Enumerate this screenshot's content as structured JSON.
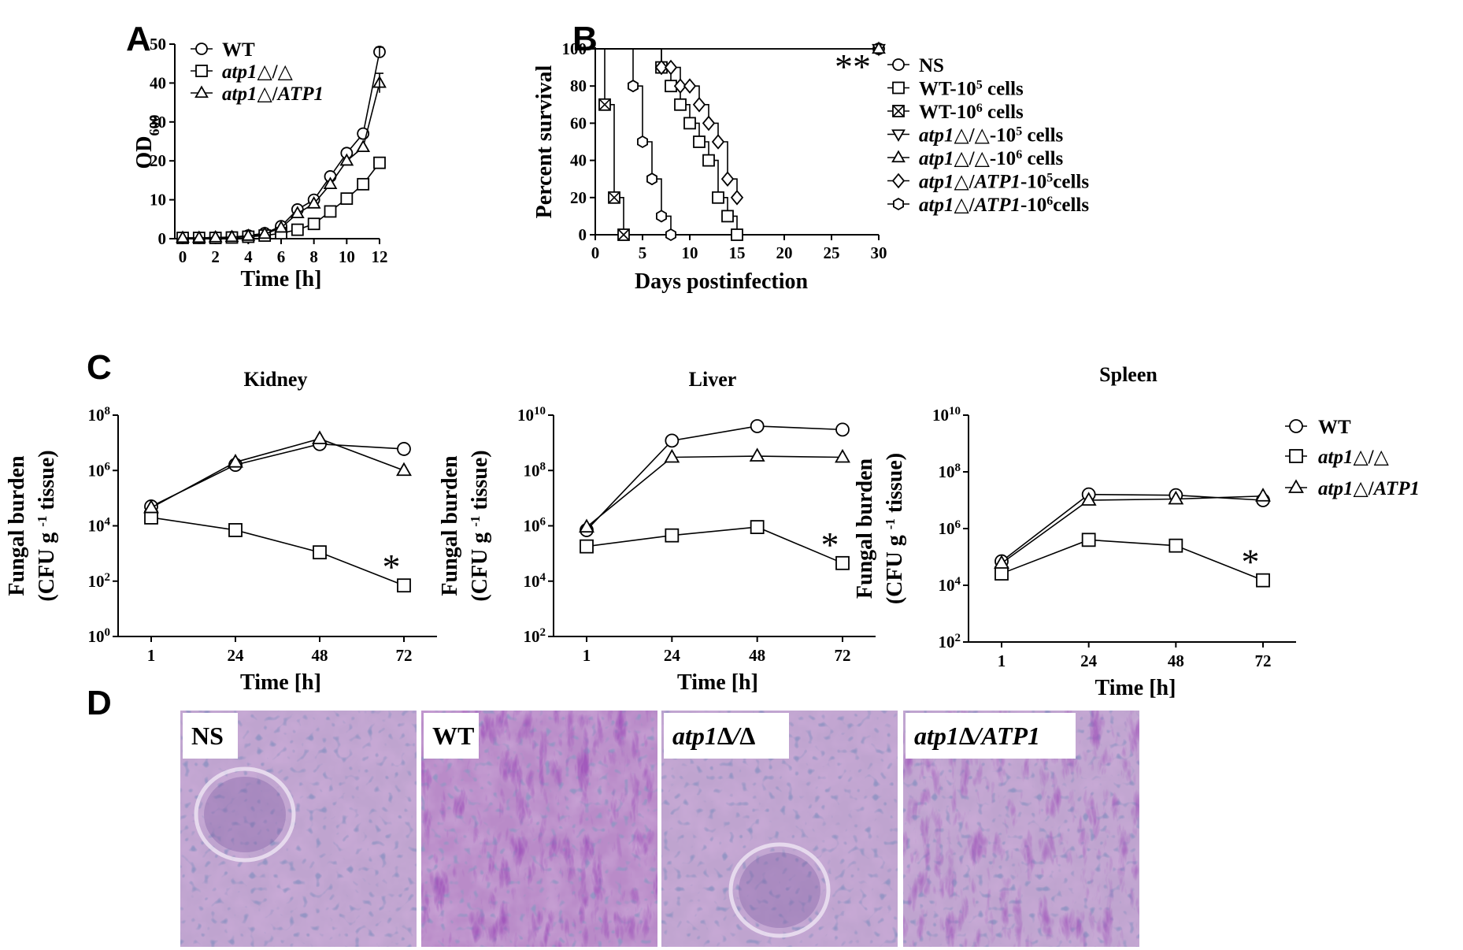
{
  "panel_labels": {
    "A": "A",
    "B": "B",
    "C": "C",
    "D": "D"
  },
  "chart_data": [
    {
      "id": "A",
      "type": "line",
      "title": "",
      "xlabel": "Time [h]",
      "ylabel": "OD",
      "ylabel_sub": "600",
      "xlim": [
        0,
        12
      ],
      "ylim": [
        0,
        50
      ],
      "xticks": [
        "0",
        "2",
        "4",
        "6",
        "8",
        "10",
        "12"
      ],
      "yticks": [
        "0",
        "10",
        "20",
        "30",
        "40",
        "50"
      ],
      "legend_position": "top-left",
      "series": [
        {
          "name": "WT",
          "marker": "circle",
          "x": [
            0,
            1,
            2,
            3,
            4,
            5,
            6,
            7,
            8,
            9,
            10,
            11,
            12
          ],
          "y": [
            0.2,
            0.2,
            0.3,
            0.4,
            0.8,
            1.4,
            3.2,
            7.5,
            10,
            16,
            22,
            27,
            48
          ]
        },
        {
          "name": "atp1△/△",
          "marker": "square",
          "x": [
            0,
            1,
            2,
            3,
            4,
            5,
            6,
            7,
            8,
            9,
            10,
            11,
            12
          ],
          "y": [
            0.2,
            0.2,
            0.2,
            0.3,
            0.5,
            0.8,
            1.4,
            2.3,
            3.8,
            7,
            10.3,
            14,
            19.5
          ]
        },
        {
          "name": "atp1△/ATP1",
          "marker": "triangle",
          "x": [
            0,
            1,
            2,
            3,
            4,
            5,
            6,
            7,
            8,
            9,
            10,
            11,
            12
          ],
          "y": [
            0.2,
            0.2,
            0.3,
            0.4,
            0.7,
            1.2,
            2.8,
            6.5,
            9,
            14,
            20,
            23.5,
            40
          ]
        }
      ]
    },
    {
      "id": "B",
      "type": "line",
      "subtype": "survival-step",
      "title": "",
      "xlabel": "Days postinfection",
      "ylabel": "Percent survival",
      "xlim": [
        0,
        30
      ],
      "ylim": [
        0,
        100
      ],
      "xticks": [
        "0",
        "5",
        "10",
        "15",
        "20",
        "25",
        "30"
      ],
      "yticks": [
        "0",
        "20",
        "40",
        "60",
        "80",
        "100"
      ],
      "annotation": "**",
      "legend_position": "right",
      "series": [
        {
          "name": "NS",
          "marker": "circle",
          "x": [
            0,
            30
          ],
          "y": [
            100,
            100
          ]
        },
        {
          "name": "WT-10^5 cells",
          "name_base": "WT-10",
          "name_sup": "5",
          "name_tail": " cells",
          "italic_base": false,
          "marker": "square",
          "x": [
            0,
            7,
            8,
            9,
            10,
            11,
            12,
            13,
            14,
            15
          ],
          "y": [
            100,
            90,
            80,
            70,
            60,
            50,
            40,
            20,
            10,
            0
          ]
        },
        {
          "name": "WT-10^6 cells",
          "name_base": "WT-10",
          "name_sup": "6",
          "name_tail": " cells",
          "italic_base": false,
          "marker": "square-x",
          "x": [
            0,
            1,
            2,
            3
          ],
          "y": [
            100,
            70,
            20,
            0
          ]
        },
        {
          "name": "atp1△/△-10^5 cells",
          "name_base": "atp1△/△-10",
          "name_sup": "5",
          "name_tail": " cells",
          "italic_base": true,
          "marker": "triangle-down",
          "x": [
            0,
            30
          ],
          "y": [
            100,
            100
          ]
        },
        {
          "name": "atp1△/△-10^6 cells",
          "name_base": "atp1△/△-10",
          "name_sup": "6",
          "name_tail": " cells",
          "italic_base": true,
          "marker": "triangle",
          "x": [
            0,
            30
          ],
          "y": [
            100,
            100
          ]
        },
        {
          "name": "atp1△/ATP1-10^5cells",
          "name_base": "atp1△/ATP1-10",
          "name_sup": "5",
          "name_tail": "cells",
          "italic_base": true,
          "marker": "diamond",
          "x": [
            0,
            7,
            8,
            9,
            10,
            11,
            12,
            13,
            14,
            15
          ],
          "y": [
            100,
            90,
            90,
            80,
            80,
            70,
            60,
            50,
            30,
            20
          ]
        },
        {
          "name": "atp1△/ATP1-10^6cells",
          "name_base": "atp1△/ATP1-10",
          "name_sup": "6",
          "name_tail": "cells",
          "italic_base": true,
          "marker": "hexagon",
          "x": [
            0,
            4,
            5,
            6,
            7,
            8
          ],
          "y": [
            100,
            80,
            50,
            30,
            10,
            0
          ]
        }
      ]
    },
    {
      "id": "C-kidney",
      "type": "line",
      "title": "Kidney",
      "xlabel": "Time [h]",
      "ylabel_line1": "Fungal burden",
      "ylabel_line2": "(CFU g   tissue)",
      "ylabel_sup": "-1",
      "yscale": "log",
      "ylim_exp": [
        0,
        8
      ],
      "ytick_exps": [
        "0",
        "2",
        "4",
        "6",
        "8"
      ],
      "categories": [
        "1",
        "24",
        "48",
        "72"
      ],
      "annotation": "*",
      "series": [
        {
          "name": "WT",
          "marker": "circle",
          "values": [
            50000,
            1600000,
            9000000,
            6000000
          ]
        },
        {
          "name": "atp1△/△",
          "marker": "square",
          "values": [
            20000,
            7000,
            1100,
            70
          ]
        },
        {
          "name": "atp1△/ATP1",
          "marker": "triangle",
          "values": [
            45000,
            2000000,
            14000000,
            1000000
          ]
        }
      ]
    },
    {
      "id": "C-liver",
      "type": "line",
      "title": "Liver",
      "xlabel": "Time [h]",
      "ylabel_line1": "Fungal burden",
      "ylabel_line2": "(CFU g   tissue)",
      "ylabel_sup": "-1",
      "yscale": "log",
      "ylim_exp": [
        2,
        10
      ],
      "ytick_exps": [
        "2",
        "4",
        "6",
        "8",
        "10"
      ],
      "categories": [
        "1",
        "24",
        "48",
        "72"
      ],
      "annotation": "*",
      "series": [
        {
          "name": "WT",
          "marker": "circle",
          "values": [
            700000,
            1200000000,
            4000000000,
            3000000000
          ]
        },
        {
          "name": "atp1△/△",
          "marker": "square",
          "values": [
            180000,
            450000,
            900000,
            45000
          ]
        },
        {
          "name": "atp1△/ATP1",
          "marker": "triangle",
          "values": [
            900000,
            300000000,
            330000000,
            300000000
          ]
        }
      ]
    },
    {
      "id": "C-spleen",
      "type": "line",
      "title": "Spleen",
      "xlabel": "Time [h]",
      "ylabel_line1": "Fungal burden",
      "ylabel_line2": "(CFU g   tissue)",
      "ylabel_sup": "-1",
      "yscale": "log",
      "ylim_exp": [
        2,
        10
      ],
      "ytick_exps": [
        "2",
        "4",
        "6",
        "8",
        "10"
      ],
      "categories": [
        "1",
        "24",
        "48",
        "72"
      ],
      "annotation": "*",
      "legend_position": "right",
      "series": [
        {
          "name": "WT",
          "marker": "circle",
          "values": [
            70000,
            16000000,
            15000000,
            10000000
          ]
        },
        {
          "name": "atp1△/△",
          "marker": "square",
          "values": [
            26000,
            400000,
            250000,
            15000
          ]
        },
        {
          "name": "atp1△/ATP1",
          "marker": "triangle",
          "values": [
            60000,
            10000000,
            11000000,
            14000000
          ]
        }
      ]
    }
  ],
  "panel_d": {
    "images": [
      {
        "label": "NS",
        "italic": false
      },
      {
        "label": "WT",
        "italic": false
      },
      {
        "label": "atp1∆/∆",
        "italic": true
      },
      {
        "label": "atp1∆/ATP1",
        "italic": true
      }
    ]
  }
}
